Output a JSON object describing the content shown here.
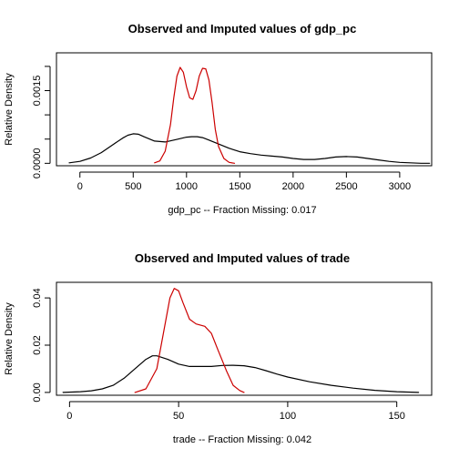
{
  "chart_data": [
    {
      "type": "line",
      "title": "Observed and Imputed values of gdp_pc",
      "xlabel": "gdp_pc  --  Fraction Missing: 0.017",
      "ylabel": "Relative Density",
      "xlim": [
        -220,
        3300
      ],
      "ylim": [
        -5e-05,
        0.00228
      ],
      "x_ticks": [
        0,
        500,
        1000,
        1500,
        2000,
        2500,
        3000
      ],
      "x_tick_labels": [
        "0",
        "500",
        "1000",
        "1500",
        "2000",
        "2500",
        "3000"
      ],
      "y_ticks": [
        0.0,
        0.0005,
        0.001,
        0.0015,
        0.002
      ],
      "y_tick_labels": [
        "0.0000",
        "",
        "",
        "0.0015",
        ""
      ],
      "grid": false,
      "series": [
        {
          "color": "#000000",
          "x": [
            -100,
            0,
            100,
            200,
            300,
            400,
            450,
            500,
            550,
            600,
            700,
            800,
            900,
            1000,
            1050,
            1100,
            1150,
            1200,
            1300,
            1400,
            1500,
            1600,
            1700,
            1800,
            1900,
            2000,
            2100,
            2200,
            2300,
            2400,
            2500,
            2600,
            2700,
            2800,
            2900,
            3000,
            3100,
            3200,
            3280
          ],
          "y": [
            1e-05,
            4e-05,
            0.00011,
            0.00022,
            0.00037,
            0.00052,
            0.00058,
            0.00061,
            0.0006,
            0.00055,
            0.00046,
            0.00044,
            0.00049,
            0.00054,
            0.00055,
            0.00055,
            0.00053,
            0.00049,
            0.0004,
            0.00031,
            0.00024,
            0.0002,
            0.00017,
            0.00015,
            0.00013,
            0.0001,
            8e-05,
            8e-05,
            0.0001,
            0.00013,
            0.00014,
            0.00013,
            0.0001,
            7e-05,
            4e-05,
            2e-05,
            1e-05,
            0.0,
            0.0
          ]
        },
        {
          "color": "#cc0000",
          "x": [
            700,
            750,
            800,
            850,
            880,
            910,
            940,
            970,
            1000,
            1030,
            1060,
            1090,
            1120,
            1150,
            1180,
            1210,
            1240,
            1270,
            1300,
            1350,
            1400,
            1450
          ],
          "y": [
            1e-05,
            5e-05,
            0.00025,
            0.0008,
            0.00135,
            0.0018,
            0.00198,
            0.00188,
            0.00158,
            0.00135,
            0.00132,
            0.0015,
            0.0018,
            0.00196,
            0.00195,
            0.00172,
            0.00125,
            0.0007,
            0.00035,
            0.0001,
            2e-05,
            0.0
          ]
        }
      ]
    },
    {
      "type": "line",
      "title": "Observed and Imputed values of trade",
      "xlabel": "trade  --  Fraction Missing: 0.042",
      "ylabel": "Relative Density",
      "xlim": [
        -6,
        166
      ],
      "ylim": [
        -0.0012,
        0.0466
      ],
      "x_ticks": [
        0,
        50,
        100,
        150
      ],
      "x_tick_labels": [
        "0",
        "50",
        "100",
        "150"
      ],
      "y_ticks": [
        0.0,
        0.02,
        0.04
      ],
      "y_tick_labels": [
        "0.00",
        "0.02",
        "0.04"
      ],
      "grid": false,
      "series": [
        {
          "color": "#000000",
          "x": [
            -3,
            5,
            10,
            15,
            20,
            25,
            30,
            35,
            38,
            40,
            45,
            50,
            55,
            60,
            65,
            70,
            75,
            80,
            85,
            90,
            95,
            100,
            110,
            120,
            130,
            140,
            150,
            160
          ],
          "y": [
            0.0,
            0.0003,
            0.0007,
            0.0015,
            0.003,
            0.006,
            0.01,
            0.014,
            0.0155,
            0.0155,
            0.014,
            0.012,
            0.011,
            0.011,
            0.011,
            0.0114,
            0.0115,
            0.0113,
            0.0105,
            0.0092,
            0.0078,
            0.0065,
            0.0045,
            0.003,
            0.0018,
            0.0009,
            0.0003,
            0.0
          ]
        },
        {
          "color": "#cc0000",
          "x": [
            30,
            35,
            40,
            43,
            46,
            48,
            50,
            52,
            55,
            58,
            62,
            65,
            68,
            72,
            75,
            78,
            80
          ],
          "y": [
            0.0,
            0.0015,
            0.01,
            0.025,
            0.04,
            0.044,
            0.043,
            0.038,
            0.031,
            0.029,
            0.028,
            0.025,
            0.018,
            0.009,
            0.003,
            0.0008,
            0.0
          ]
        }
      ]
    }
  ]
}
